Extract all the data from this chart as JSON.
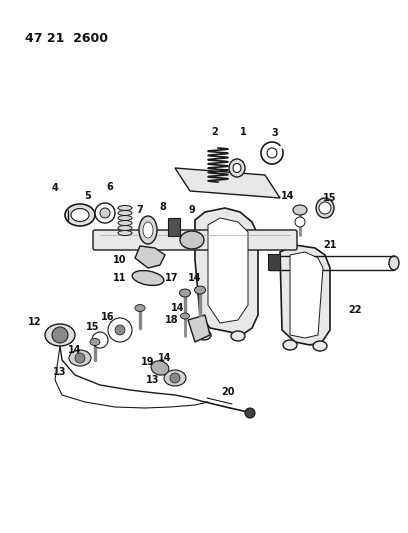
{
  "title": "47 21  2600",
  "bg_color": "#ffffff",
  "line_color": "#1a1a1a",
  "text_color": "#111111",
  "fig_width": 4.08,
  "fig_height": 5.33,
  "dpi": 100
}
